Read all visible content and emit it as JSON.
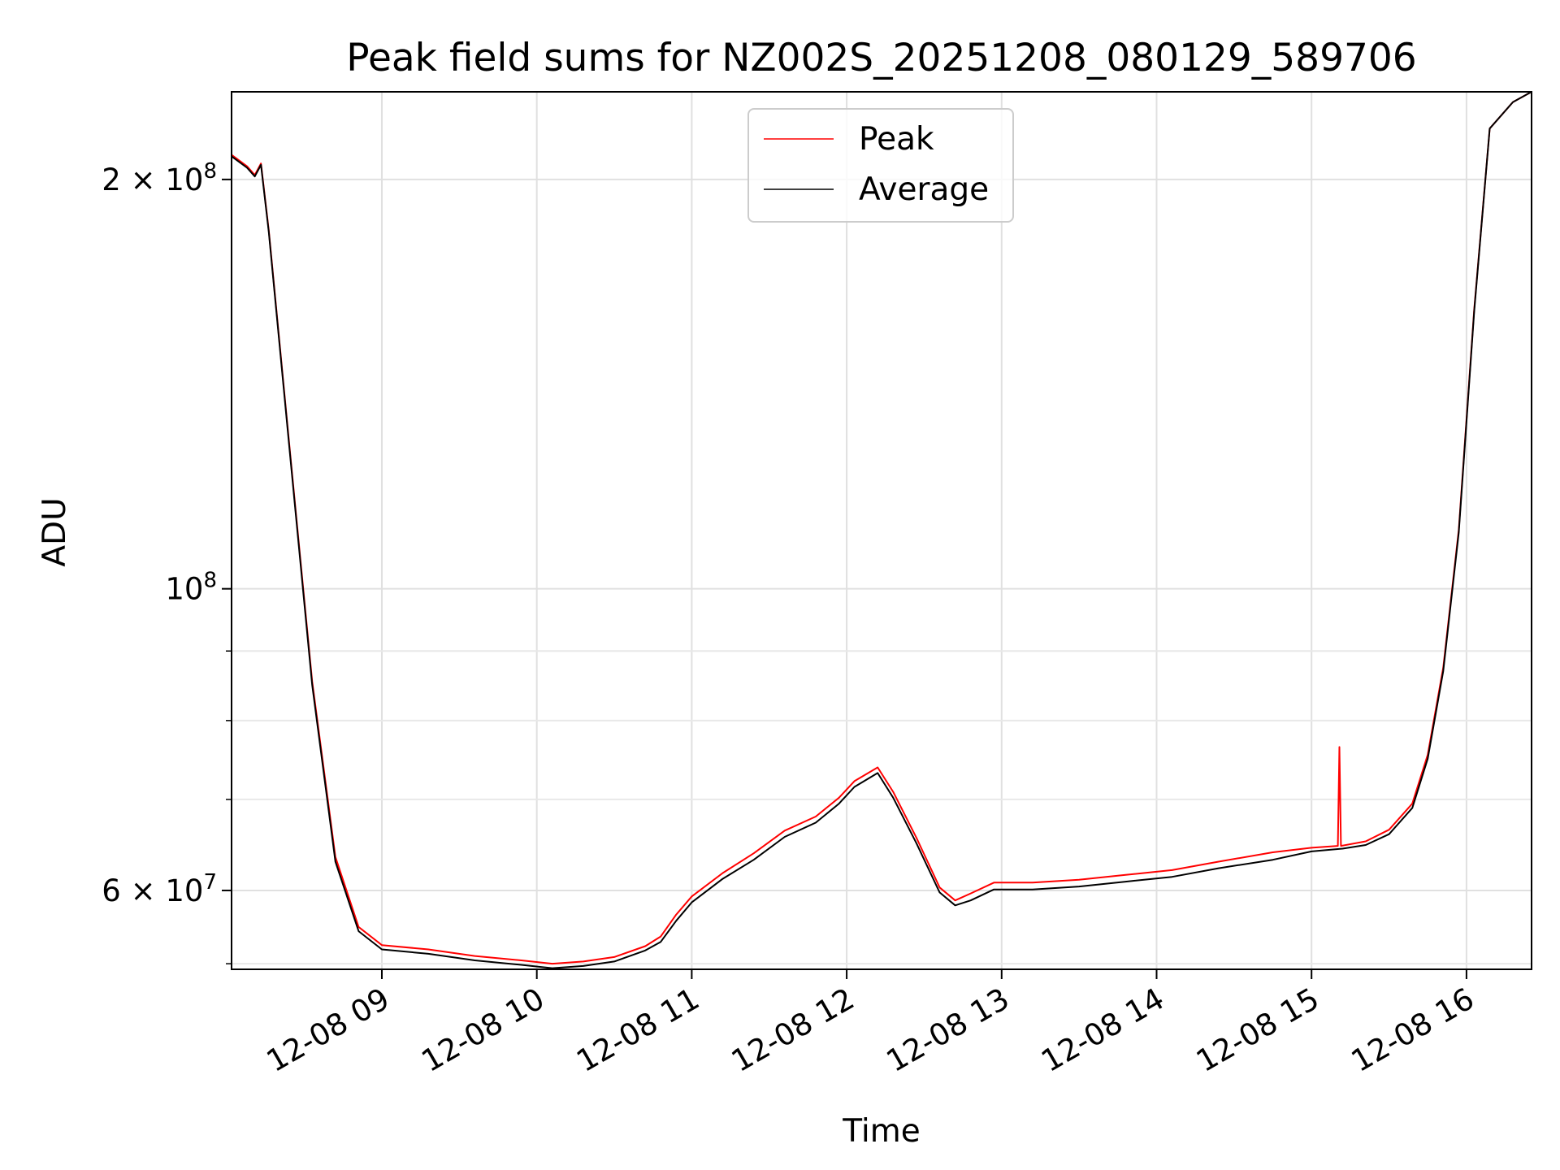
{
  "chart_data": {
    "type": "line",
    "title": "Peak field sums for NZ002S_20251208_080129_589706",
    "xlabel": "Time",
    "ylabel": "ADU",
    "x_unit": "hours since 2025-12-08 00:00",
    "xlim": [
      8.03,
      16.42
    ],
    "ylim": [
      52500000,
      232000000
    ],
    "yscale": "log",
    "x_ticks": [
      {
        "value": 9,
        "label": "12-08 09"
      },
      {
        "value": 10,
        "label": "12-08 10"
      },
      {
        "value": 11,
        "label": "12-08 11"
      },
      {
        "value": 12,
        "label": "12-08 12"
      },
      {
        "value": 13,
        "label": "12-08 13"
      },
      {
        "value": 14,
        "label": "12-08 14"
      },
      {
        "value": 15,
        "label": "12-08 15"
      },
      {
        "value": 16,
        "label": "12-08 16"
      }
    ],
    "y_major_ticks": [
      {
        "value": 60000000,
        "mantissa": "6",
        "exponent": "7"
      },
      {
        "value": 100000000,
        "mantissa": "",
        "exponent": "8"
      },
      {
        "value": 200000000,
        "mantissa": "2",
        "exponent": "8"
      }
    ],
    "y_minor_ticks": [
      53000000,
      70000000,
      80000000,
      90000000
    ],
    "times_sign": "×",
    "base": "10",
    "grid": true,
    "legend_position": "upper-center",
    "series": [
      {
        "name": "Average",
        "color": "#000000",
        "x": [
          8.03,
          8.13,
          8.18,
          8.22,
          8.27,
          8.4,
          8.55,
          8.7,
          8.85,
          9.0,
          9.3,
          9.6,
          9.9,
          10.1,
          10.3,
          10.5,
          10.7,
          10.8,
          10.9,
          11.0,
          11.2,
          11.4,
          11.6,
          11.8,
          11.95,
          12.05,
          12.2,
          12.3,
          12.45,
          12.6,
          12.7,
          12.8,
          12.95,
          13.2,
          13.5,
          13.8,
          14.1,
          14.4,
          14.75,
          15.0,
          15.2,
          15.35,
          15.5,
          15.65,
          15.75,
          15.85,
          15.95,
          16.05,
          16.15,
          16.3,
          16.42
        ],
        "y": [
          208000000,
          204000000,
          201000000,
          205000000,
          183000000,
          128000000,
          85000000,
          63000000,
          56000000,
          54300000,
          53900000,
          53300000,
          52900000,
          52600000,
          52800000,
          53200000,
          54200000,
          55000000,
          57000000,
          58800000,
          61200000,
          63200000,
          65700000,
          67300000,
          69500000,
          71500000,
          73200000,
          70200000,
          65000000,
          59800000,
          58500000,
          59000000,
          60100000,
          60100000,
          60400000,
          60900000,
          61400000,
          62300000,
          63200000,
          64100000,
          64400000,
          64800000,
          66000000,
          69000000,
          75000000,
          87000000,
          110000000,
          160000000,
          218000000,
          228000000,
          232000000
        ]
      },
      {
        "name": "Peak",
        "color": "#ff0000",
        "x": [
          8.03,
          8.13,
          8.18,
          8.22,
          8.27,
          8.4,
          8.55,
          8.7,
          8.85,
          9.0,
          9.3,
          9.6,
          9.9,
          10.1,
          10.3,
          10.5,
          10.7,
          10.8,
          10.9,
          11.0,
          11.2,
          11.4,
          11.6,
          11.8,
          11.95,
          12.05,
          12.2,
          12.3,
          12.45,
          12.6,
          12.7,
          12.8,
          12.95,
          13.2,
          13.5,
          13.8,
          14.1,
          14.4,
          14.75,
          15.0,
          15.17,
          15.18,
          15.19,
          15.35,
          15.5,
          15.65,
          15.75,
          15.85,
          15.95,
          16.05,
          16.15,
          16.3,
          16.42
        ],
        "y": [
          208500000,
          204500000,
          201500000,
          205500000,
          183500000,
          128500000,
          85500000,
          63500000,
          56400000,
          54700000,
          54300000,
          53700000,
          53300000,
          53000000,
          53200000,
          53600000,
          54600000,
          55500000,
          57600000,
          59400000,
          61800000,
          63900000,
          66400000,
          68000000,
          70200000,
          72200000,
          73900000,
          70900000,
          65600000,
          60300000,
          59000000,
          59700000,
          60800000,
          60800000,
          61100000,
          61600000,
          62100000,
          63000000,
          64000000,
          64500000,
          64700000,
          76500000,
          64700000,
          65200000,
          66500000,
          69500000,
          75500000,
          87500000,
          110500000,
          160500000,
          218000000,
          228000000,
          232000000
        ]
      }
    ]
  }
}
